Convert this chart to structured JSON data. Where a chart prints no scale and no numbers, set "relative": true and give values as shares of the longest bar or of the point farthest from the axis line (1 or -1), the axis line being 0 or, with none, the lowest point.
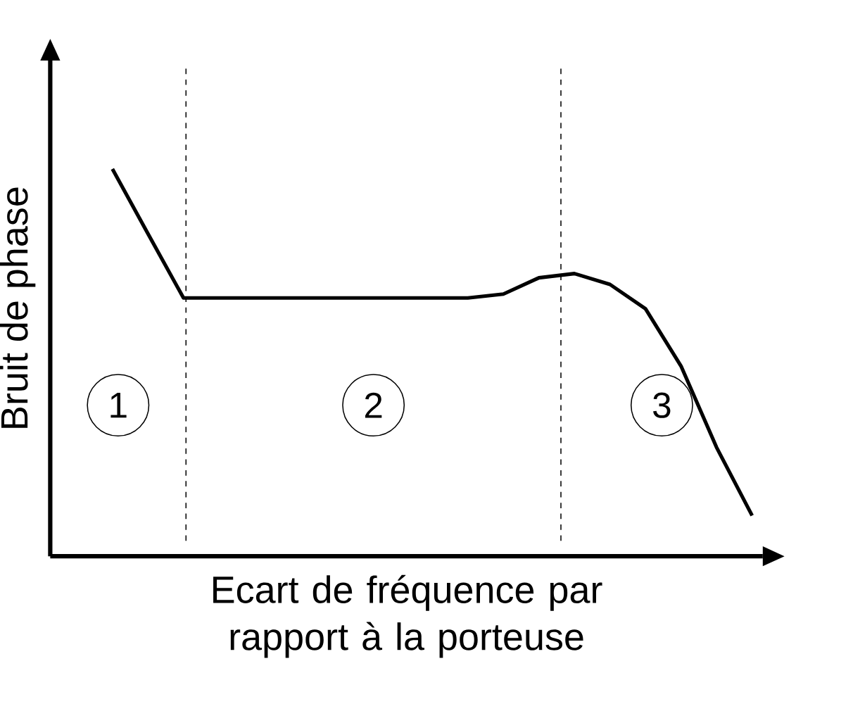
{
  "chart_data": {
    "type": "line",
    "relative": true,
    "xlabel": "Ecart de fréquence par rapport à la porteuse",
    "ylabel": "Bruit de phase",
    "categories": [
      null,
      null,
      null,
      null,
      null,
      null,
      null,
      null,
      null,
      null,
      null,
      null,
      null,
      null,
      null,
      null,
      null,
      null,
      null
    ],
    "series": [
      {
        "color": "#000000",
        "values": [
          1,
          0.833,
          0.667,
          0.667,
          0.667,
          0.667,
          0.667,
          0.667,
          0.667,
          0.667,
          0.667,
          0.677,
          0.719,
          0.73,
          0.702,
          0.639,
          0.491,
          0.281,
          0.105
        ]
      }
    ],
    "annotations": [
      "1",
      "2",
      "3"
    ],
    "marker": "none",
    "line_style": "solid"
  }
}
